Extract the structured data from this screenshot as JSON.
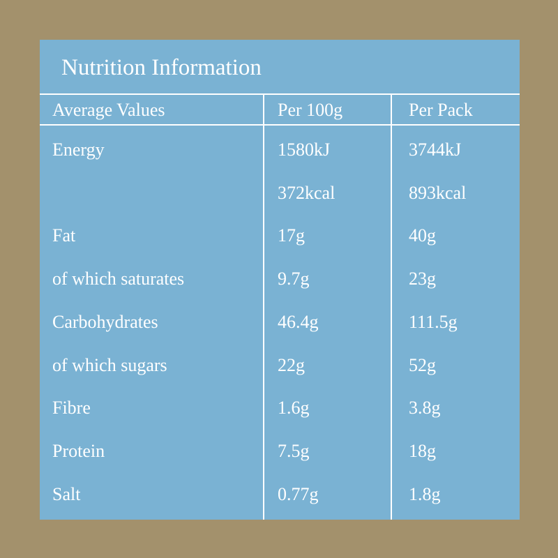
{
  "title": "Nutrition Information",
  "table": {
    "header": [
      "Average Values",
      "Per 100g",
      "Per Pack"
    ],
    "rows": [
      {
        "label": "Energy",
        "per_100g": [
          "1580kJ",
          "372kcal"
        ],
        "per_pack": [
          "3744kJ",
          "893kcal"
        ]
      },
      {
        "label": "Fat",
        "per_100g": [
          "17g"
        ],
        "per_pack": [
          "40g"
        ]
      },
      {
        "label": "of which saturates",
        "per_100g": [
          "9.7g"
        ],
        "per_pack": [
          "23g"
        ]
      },
      {
        "label": "Carbohydrates",
        "per_100g": [
          "46.4g"
        ],
        "per_pack": [
          "111.5g"
        ]
      },
      {
        "label": "of which sugars",
        "per_100g": [
          "22g"
        ],
        "per_pack": [
          "52g"
        ]
      },
      {
        "label": "Fibre",
        "per_100g": [
          "1.6g"
        ],
        "per_pack": [
          "3.8g"
        ]
      },
      {
        "label": "Protein",
        "per_100g": [
          "7.5g"
        ],
        "per_pack": [
          "18g"
        ]
      },
      {
        "label": "Salt",
        "per_100g": [
          "0.77g"
        ],
        "per_pack": [
          "1.8g"
        ]
      }
    ]
  }
}
